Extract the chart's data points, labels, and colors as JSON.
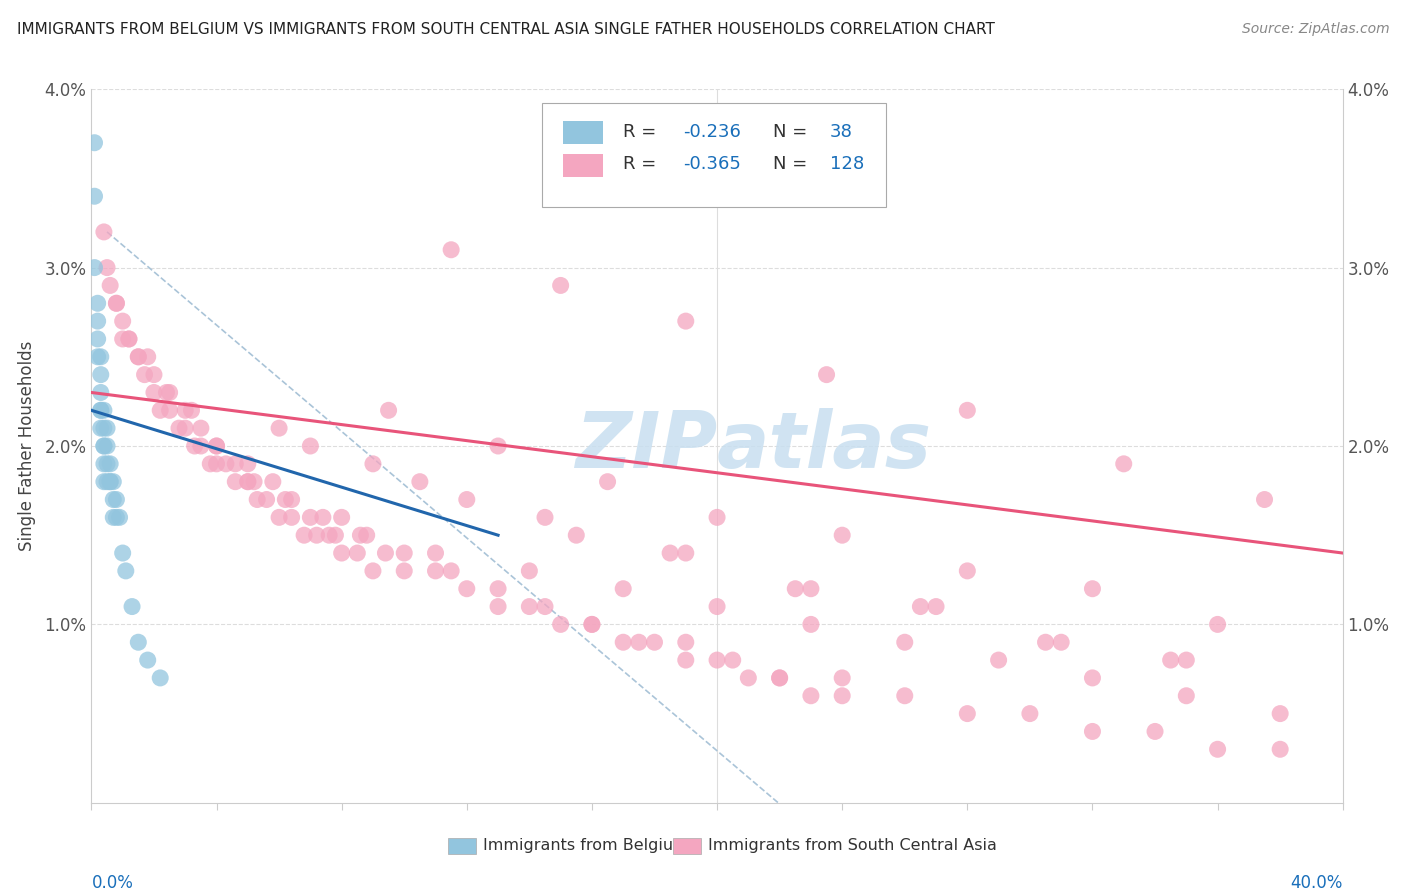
{
  "title": "IMMIGRANTS FROM BELGIUM VS IMMIGRANTS FROM SOUTH CENTRAL ASIA SINGLE FATHER HOUSEHOLDS CORRELATION CHART",
  "source": "Source: ZipAtlas.com",
  "ylabel": "Single Father Households",
  "xlim": [
    0.0,
    0.4
  ],
  "ylim": [
    0.0,
    0.04
  ],
  "color_blue": "#92c5de",
  "color_pink": "#f4a6c0",
  "color_line_blue": "#2166ac",
  "color_line_pink": "#e8547a",
  "color_line_gray": "#aac4d8",
  "watermark_color": "#c8dff0",
  "legend_r_color": "#333333",
  "legend_val_color": "#1a6fba",
  "belgium_x": [
    0.001,
    0.001,
    0.001,
    0.002,
    0.002,
    0.002,
    0.002,
    0.003,
    0.003,
    0.003,
    0.003,
    0.003,
    0.003,
    0.004,
    0.004,
    0.004,
    0.004,
    0.004,
    0.004,
    0.005,
    0.005,
    0.005,
    0.005,
    0.006,
    0.006,
    0.006,
    0.007,
    0.007,
    0.007,
    0.008,
    0.008,
    0.009,
    0.01,
    0.011,
    0.013,
    0.015,
    0.018,
    0.022
  ],
  "belgium_y": [
    0.037,
    0.034,
    0.03,
    0.028,
    0.027,
    0.026,
    0.025,
    0.025,
    0.024,
    0.023,
    0.022,
    0.022,
    0.021,
    0.022,
    0.021,
    0.02,
    0.02,
    0.019,
    0.018,
    0.021,
    0.02,
    0.019,
    0.018,
    0.019,
    0.018,
    0.018,
    0.018,
    0.017,
    0.016,
    0.017,
    0.016,
    0.016,
    0.014,
    0.013,
    0.011,
    0.009,
    0.008,
    0.007
  ],
  "sca_x": [
    0.004,
    0.005,
    0.006,
    0.008,
    0.01,
    0.012,
    0.015,
    0.017,
    0.02,
    0.022,
    0.025,
    0.028,
    0.03,
    0.033,
    0.035,
    0.038,
    0.04,
    0.043,
    0.046,
    0.05,
    0.053,
    0.056,
    0.06,
    0.064,
    0.068,
    0.072,
    0.076,
    0.08,
    0.085,
    0.09,
    0.01,
    0.015,
    0.02,
    0.025,
    0.03,
    0.035,
    0.04,
    0.046,
    0.052,
    0.058,
    0.064,
    0.07,
    0.078,
    0.086,
    0.094,
    0.1,
    0.11,
    0.12,
    0.13,
    0.14,
    0.15,
    0.16,
    0.17,
    0.18,
    0.19,
    0.2,
    0.21,
    0.22,
    0.23,
    0.24,
    0.008,
    0.012,
    0.018,
    0.024,
    0.032,
    0.04,
    0.05,
    0.062,
    0.074,
    0.088,
    0.1,
    0.115,
    0.13,
    0.145,
    0.16,
    0.175,
    0.19,
    0.205,
    0.22,
    0.24,
    0.26,
    0.28,
    0.3,
    0.32,
    0.34,
    0.36,
    0.38,
    0.05,
    0.08,
    0.11,
    0.14,
    0.17,
    0.2,
    0.23,
    0.26,
    0.29,
    0.32,
    0.35,
    0.38,
    0.095,
    0.13,
    0.165,
    0.2,
    0.24,
    0.28,
    0.32,
    0.36,
    0.06,
    0.09,
    0.12,
    0.155,
    0.19,
    0.23,
    0.27,
    0.31,
    0.35,
    0.07,
    0.105,
    0.145,
    0.185,
    0.225,
    0.265,
    0.305,
    0.345,
    0.115,
    0.15,
    0.19,
    0.235,
    0.28,
    0.33,
    0.375
  ],
  "sca_y": [
    0.032,
    0.03,
    0.029,
    0.028,
    0.027,
    0.026,
    0.025,
    0.024,
    0.023,
    0.022,
    0.022,
    0.021,
    0.021,
    0.02,
    0.02,
    0.019,
    0.019,
    0.019,
    0.018,
    0.018,
    0.017,
    0.017,
    0.016,
    0.016,
    0.015,
    0.015,
    0.015,
    0.014,
    0.014,
    0.013,
    0.026,
    0.025,
    0.024,
    0.023,
    0.022,
    0.021,
    0.02,
    0.019,
    0.018,
    0.018,
    0.017,
    0.016,
    0.015,
    0.015,
    0.014,
    0.013,
    0.013,
    0.012,
    0.011,
    0.011,
    0.01,
    0.01,
    0.009,
    0.009,
    0.008,
    0.008,
    0.007,
    0.007,
    0.006,
    0.006,
    0.028,
    0.026,
    0.025,
    0.023,
    0.022,
    0.02,
    0.019,
    0.017,
    0.016,
    0.015,
    0.014,
    0.013,
    0.012,
    0.011,
    0.01,
    0.009,
    0.009,
    0.008,
    0.007,
    0.007,
    0.006,
    0.005,
    0.005,
    0.004,
    0.004,
    0.003,
    0.003,
    0.018,
    0.016,
    0.014,
    0.013,
    0.012,
    0.011,
    0.01,
    0.009,
    0.008,
    0.007,
    0.006,
    0.005,
    0.022,
    0.02,
    0.018,
    0.016,
    0.015,
    0.013,
    0.012,
    0.01,
    0.021,
    0.019,
    0.017,
    0.015,
    0.014,
    0.012,
    0.011,
    0.009,
    0.008,
    0.02,
    0.018,
    0.016,
    0.014,
    0.012,
    0.011,
    0.009,
    0.008,
    0.031,
    0.029,
    0.027,
    0.024,
    0.022,
    0.019,
    0.017
  ]
}
